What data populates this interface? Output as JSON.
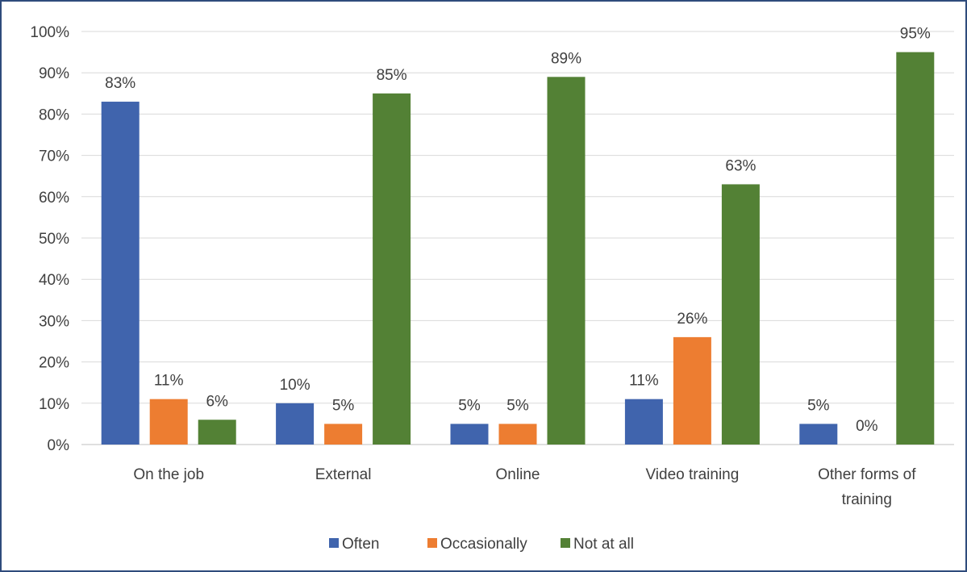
{
  "chart_data": {
    "type": "bar",
    "title": "",
    "xlabel": "",
    "ylabel": "",
    "ylim": [
      0,
      100
    ],
    "y_tick_step": 10,
    "y_tick_format": "percent",
    "grid": true,
    "legend_position": "bottom",
    "categories": [
      [
        "On the job"
      ],
      [
        "External"
      ],
      [
        "Online"
      ],
      [
        "Video training"
      ],
      [
        "Other forms of",
        "training"
      ]
    ],
    "series": [
      {
        "name": "Often",
        "color": "#4064ad",
        "values": [
          83,
          10,
          5,
          11,
          5
        ]
      },
      {
        "name": "Occasionally",
        "color": "#ed7d31",
        "values": [
          11,
          5,
          5,
          26,
          0
        ]
      },
      {
        "name": "Not at all",
        "color": "#538135",
        "values": [
          6,
          85,
          89,
          63,
          95
        ]
      }
    ],
    "data_labels": [
      [
        "83%",
        "10%",
        "5%",
        "11%",
        "5%"
      ],
      [
        "11%",
        "5%",
        "5%",
        "26%",
        "0%"
      ],
      [
        "6%",
        "85%",
        "89%",
        "63%",
        "95%"
      ]
    ]
  }
}
